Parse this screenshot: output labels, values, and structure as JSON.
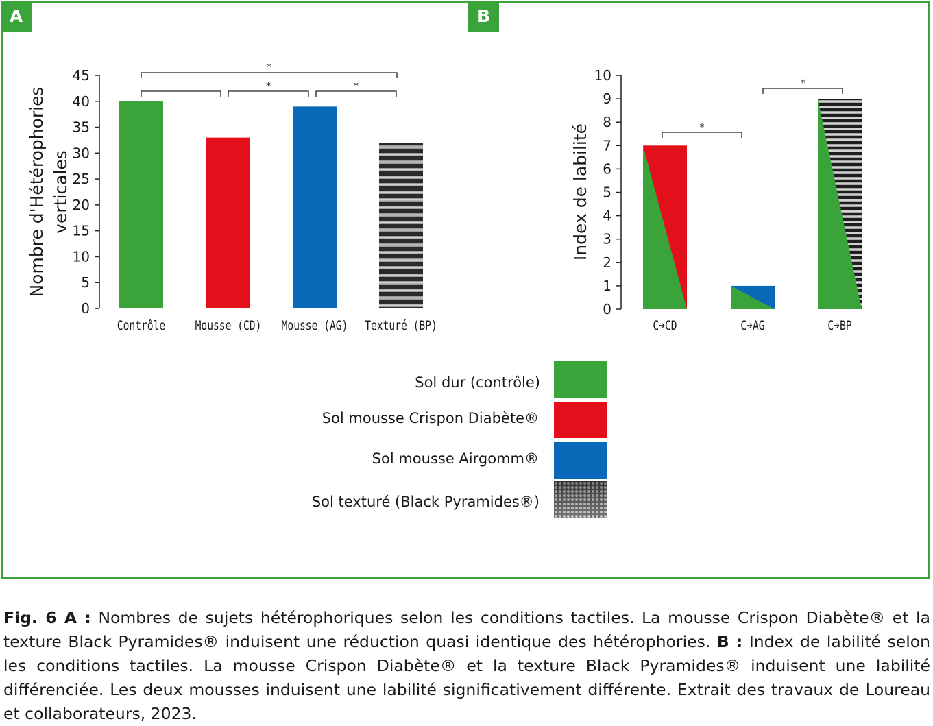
{
  "panels": {
    "a": "A",
    "b": "B"
  },
  "colors": {
    "green": "#3aa43a",
    "red": "#e3101b",
    "blue": "#0769b8",
    "frame": "#3aa43a"
  },
  "chart_data": [
    {
      "type": "bar",
      "panel": "A",
      "ylabel_line1": "Nombre d'Hétérophories",
      "ylabel_line2": "verticales",
      "ylim": [
        0,
        45
      ],
      "yticks": [
        "0",
        "5",
        "10",
        "15",
        "20",
        "25",
        "30",
        "35",
        "40",
        "45"
      ],
      "categories": [
        "Contrôle",
        "Mousse (CD)",
        "Mousse (AG)",
        "Texturé (BP)"
      ],
      "values": [
        40,
        33,
        39,
        32
      ],
      "significance": [
        {
          "from": 0,
          "to": 3,
          "label": "*"
        },
        {
          "from": 0,
          "to": 1,
          "label": ""
        },
        {
          "from": 1,
          "to": 2,
          "label": "*"
        },
        {
          "from": 2,
          "to": 3,
          "label": "*"
        }
      ]
    },
    {
      "type": "bar",
      "panel": "B",
      "ylabel": "Index de labilité",
      "ylim": [
        0,
        10
      ],
      "yticks": [
        "0",
        "1",
        "2",
        "3",
        "4",
        "5",
        "6",
        "7",
        "8",
        "9",
        "10"
      ],
      "categories": [
        "C➔CD",
        "C➔AG",
        "C➔BP"
      ],
      "values": [
        7,
        1,
        9
      ],
      "significance": [
        {
          "from": 0,
          "to": 1,
          "label": "*"
        },
        {
          "from": 1,
          "to": 2,
          "label": "*"
        }
      ]
    }
  ],
  "legend": [
    {
      "label": "Sol dur (contrôle)",
      "swatch": "green"
    },
    {
      "label": "Sol mousse Crispon Diabète®",
      "swatch": "red"
    },
    {
      "label": "Sol mousse Airgomm®",
      "swatch": "blue"
    },
    {
      "label": "Sol texturé (Black Pyramides®)",
      "swatch": "texture"
    }
  ],
  "caption": {
    "lead": "Fig. 6 A :",
    "part1": " Nombres de sujets hétérophoriques selon les conditions tactiles. La mousse Crispon Diabète® et la texture Black Pyramides® induisent une réduction quasi identique des hétérophories. ",
    "lead_b": "B :",
    "part2": " Index de labilité selon les conditions tactiles. La mousse Crispon Diabète® et la texture Black Pyramides® induisent une labilité différenciée. Les deux mousses induisent une labilité significativement différente. Extrait des travaux de Loureau et collaborateurs, 2023."
  }
}
